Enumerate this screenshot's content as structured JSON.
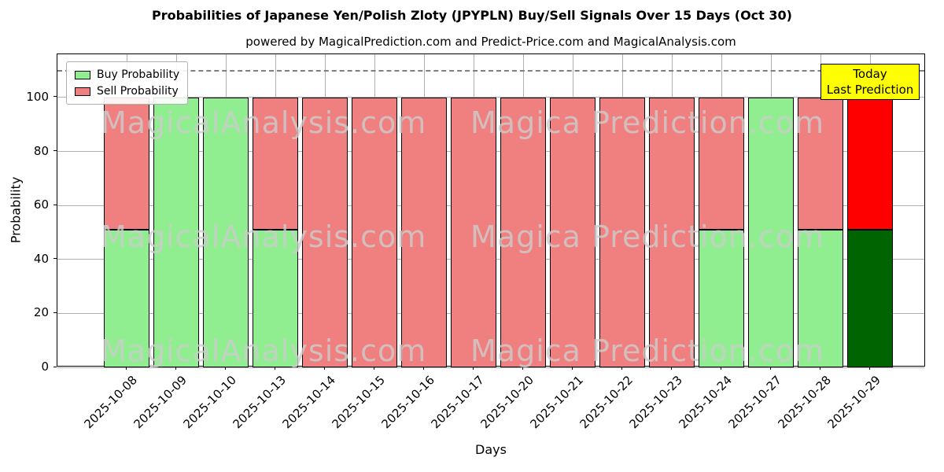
{
  "chart_data": {
    "type": "bar",
    "stacked": true,
    "title": "Probabilities of Japanese Yen/Polish Zloty (JPYPLN) Buy/Sell Signals Over 15 Days (Oct 30)",
    "subtitle": "powered by MagicalPrediction.com and Predict-Price.com and MagicalAnalysis.com",
    "xlabel": "Days",
    "ylabel": "Probability",
    "categories": [
      "2025-10-08",
      "2025-10-09",
      "2025-10-10",
      "2025-10-13",
      "2025-10-14",
      "2025-10-15",
      "2025-10-16",
      "2025-10-17",
      "2025-10-20",
      "2025-10-21",
      "2025-10-22",
      "2025-10-23",
      "2025-10-24",
      "2025-10-27",
      "2025-10-28",
      "2025-10-29"
    ],
    "series": [
      {
        "name": "Buy Probability",
        "color": "#90ee90",
        "values": [
          51,
          100,
          100,
          51,
          0,
          0,
          0,
          0,
          0,
          0,
          0,
          0,
          51,
          100,
          51,
          51
        ]
      },
      {
        "name": "Sell Probability",
        "color": "#f08080",
        "values": [
          49,
          0,
          0,
          49,
          100,
          100,
          100,
          100,
          100,
          100,
          100,
          100,
          49,
          0,
          49,
          49
        ]
      }
    ],
    "today_index": 15,
    "today_colors": {
      "buy": "#006400",
      "sell": "#ff0000"
    },
    "yticks": [
      0,
      20,
      40,
      60,
      80,
      100
    ],
    "ylim": [
      0,
      116
    ],
    "dashed_line_y": 110,
    "grid": true,
    "legend_position": "upper-left",
    "annotation_box": {
      "lines": [
        "Today",
        "Last Prediction"
      ],
      "bg": "#ffff00"
    },
    "watermarks": [
      "MagicalAnalysis.com",
      "Magica Prediction.com"
    ],
    "colors": {
      "grid": "#b0b0b0",
      "dashed_line": "#7f7f7f",
      "bar_edge": "#000000",
      "plot_bg": "#ffffff"
    }
  }
}
